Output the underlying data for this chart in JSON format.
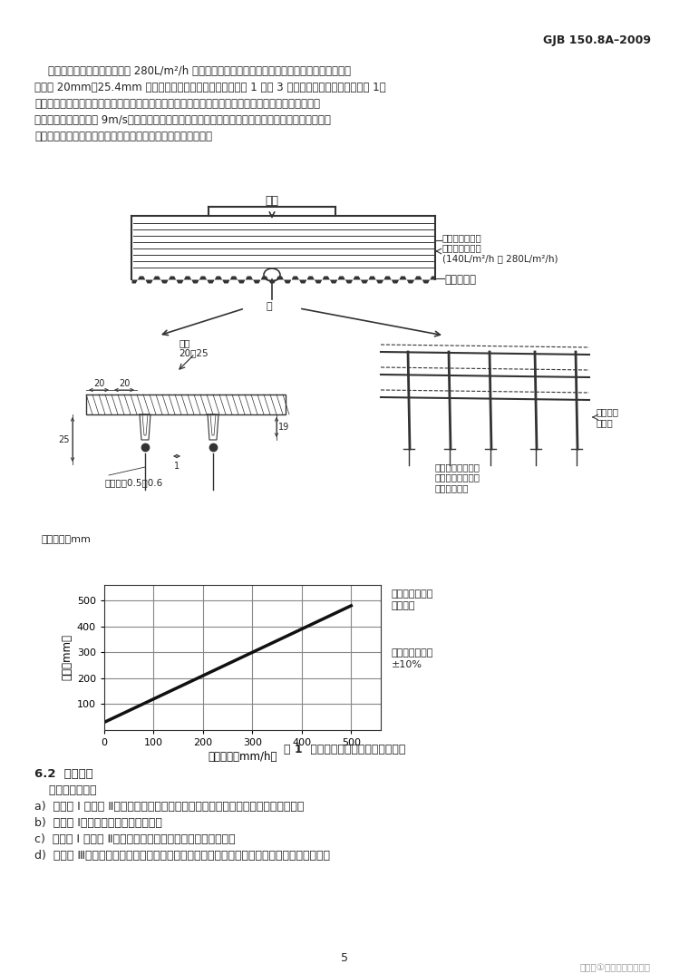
{
  "header_text": "GJB 150.8A–2009",
  "para_lines": [
    "    使用的试验装置应能提供大于 280L/m²/h 的滴水量，水从分配器中滴出，但不能聚成水流。分配器",
    "上有以 20mm～25.4mm 间隔点阵分布的滴水孔。分配器按图 1 和图 3 所示进行结构设计，推荐用图 1，",
    "主要是由于它的构造和维护简单，成本较低且试验重现性好。聚乙烯套管可任选，采用的滴水高度应确",
    "保水滴的最终速度约为 9m/s。同时采用的水分配器应有足够大的面，以覆盖试件的整个上表面。雨水",
    "中可加入荧光素一类的水溶性燃料，以帮助定位和分析水渗漏。"
  ],
  "fig_caption": "图 1  稳态淋雨或滴水试验的简易装置",
  "section_title": "6.2  试验控制",
  "section_body": "    试验控制包括：",
  "items": [
    "a)  对程序 Ⅰ 和程序 Ⅱ，每次试验前均应检查降雨强度及啤嘴啤雾散布面和啤水压力；",
    "b)  对程序 Ⅰ，每次试验前要检查风速；",
    "c)  对程序 Ⅰ 和程序 Ⅱ，每次试验前检查啤嘴啤淋方式和压力；",
    "d)  对程序 Ⅲ，每次试验前后检查滴水量，以保证试验中的允差符合要求，保证水从分配器中流"
  ],
  "page_number": "5",
  "watermark": "搜狐号①东莞科翔试验设备",
  "supply_water": "供水",
  "control_label": "控制吹雨并校准\n以保证滴雨速率\n(140L/m²/h 或 280L/m²/h)",
  "distributor_label": "水滴分配器",
  "ji_label": "即",
  "hole_label": "孔径\n20～25",
  "dim20": "20",
  "dim20b": "20",
  "dim19": "19",
  "dim25": "25",
  "dim1": "1",
  "pipe_inner": "管内径约0.5～0.6",
  "unit_label": "尺寸单位：mm",
  "corrosion_label": "耐腐蚀不\n锈钉管",
  "sleeve_label": "套在管尾的聚乙烯\n或者类似软管，以\n增加水滴尺寸",
  "graph_xlabel": "滴降速率（mm/h）",
  "graph_ylabel": "高度（mm）",
  "right_label1": "所述装置的可变",
  "right_label2": "滴雨速率",
  "right_label3": "滴雨均匀速率：",
  "right_label4": "±10%",
  "graph_xticks": [
    0,
    100,
    200,
    300,
    400,
    500
  ],
  "graph_yticks": [
    100,
    200,
    300,
    400,
    500
  ],
  "bg_color": "#ffffff",
  "text_color": "#222222",
  "diagram_color": "#333333"
}
